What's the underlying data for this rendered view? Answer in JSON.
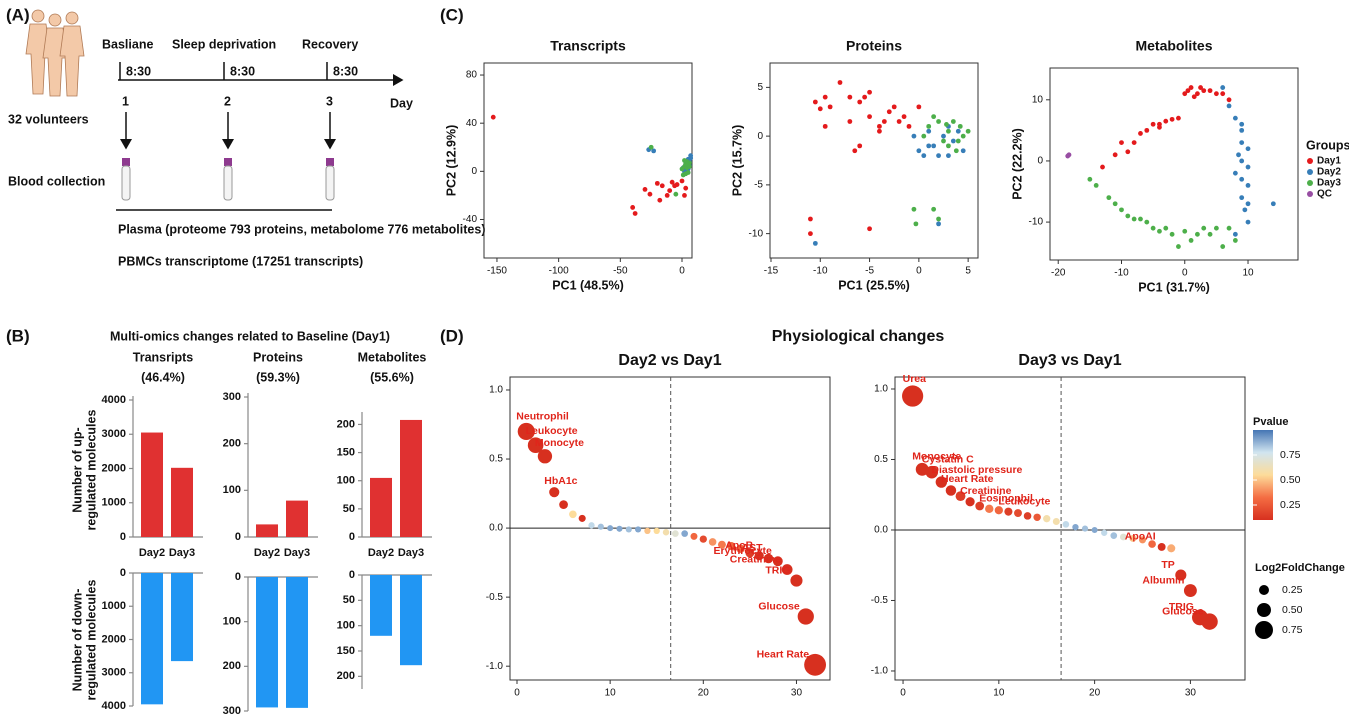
{
  "panel_a": {
    "label": "(A)",
    "stages": [
      "Basliane",
      "Sleep deprivation",
      "Recovery"
    ],
    "times": [
      "8:30",
      "8:30",
      "8:30"
    ],
    "days": [
      "1",
      "2",
      "3"
    ],
    "axis_label": "Day",
    "volunteers": "32 volunteers",
    "blood": "Blood collection",
    "plasma": "Plasma (proteome 793 proteins, metabolome 776 metabolites)",
    "pbmc": "PBMCs transcriptome (17251 transcripts)"
  },
  "panel_b": {
    "label": "(B)",
    "title": "Multi-omics changes related to Baseline (Day1)",
    "up_ylabel": [
      "Number of up-",
      "regulated molecules"
    ],
    "down_ylabel": [
      "Number of down-",
      "regulated molecules"
    ]
  },
  "panel_c": {
    "label": "(C)"
  },
  "panel_d": {
    "label": "(D)",
    "title": "Physiological changes",
    "color_legend": {
      "title": "Pvalue",
      "range": [
        0.1,
        1.0
      ],
      "colors": [
        "#d7301f",
        "#f46d43",
        "#fddc9a",
        "#d1e5f0",
        "#4575b4"
      ],
      "ticks": [
        0.75,
        {
          "value": 0.5,
          "label": "0.50"
        },
        0.25
      ]
    },
    "size_legend": {
      "title": "Log2FoldChange",
      "values": [
        0.25,
        {
          "value": 0.5,
          "label": "0.50"
        },
        0.75
      ]
    }
  },
  "chart_data": [
    {
      "type": "mirror-bar",
      "title": "Transripts",
      "subtitle": "(46.4%)",
      "categories": [
        "Day2",
        "Day3"
      ],
      "up_values": [
        3050,
        2020
      ],
      "up_ylim": [
        0,
        4000
      ],
      "up_yticks": [
        0,
        1000,
        2000,
        3000,
        4000
      ],
      "down_values": [
        3950,
        2650
      ],
      "down_ylim": [
        0,
        4000
      ],
      "down_yticks": [
        0,
        1000,
        2000,
        3000,
        4000
      ],
      "up_color": "#e03131",
      "down_color": "#2196f3"
    },
    {
      "type": "mirror-bar",
      "title": "Proteins",
      "subtitle": "(59.3%)",
      "categories": [
        "Day2",
        "Day3"
      ],
      "up_values": [
        27,
        78
      ],
      "up_ylim": [
        0,
        300
      ],
      "up_yticks": [
        0,
        100,
        200,
        300
      ],
      "down_values": [
        292,
        293
      ],
      "down_ylim": [
        0,
        300
      ],
      "down_yticks": [
        0,
        100,
        200,
        300
      ],
      "up_color": "#e03131",
      "down_color": "#2196f3"
    },
    {
      "type": "mirror-bar",
      "title": "Metabolites",
      "subtitle": "(55.6%)",
      "categories": [
        "Day2",
        "Day3"
      ],
      "up_values": [
        105,
        208
      ],
      "up_ylim": [
        0,
        215
      ],
      "up_yticks": [
        0,
        50,
        100,
        150,
        200
      ],
      "down_values": [
        120,
        178
      ],
      "down_ylim": [
        0,
        225
      ],
      "down_yticks": [
        0,
        50,
        100,
        150,
        200
      ],
      "up_color": "#e03131",
      "down_color": "#2196f3"
    },
    {
      "type": "scatter",
      "title": "Transcripts",
      "xlabel": "PC1 (48.5%)",
      "ylabel": "PC2 (12.9%)",
      "xlim": [
        -160.5,
        8.1
      ],
      "ylim": [
        -72,
        90
      ],
      "xticks": [
        -150,
        -100,
        -50,
        0
      ],
      "yticks": [
        -40,
        0,
        40,
        80
      ],
      "series": [
        {
          "color": "#e41a1c",
          "x": [
            -153,
            -40,
            -38,
            -30,
            -26,
            -20,
            -16,
            -12,
            -8,
            -4,
            0,
            3,
            -18,
            -10,
            2,
            -6
          ],
          "values": [
            45,
            -30,
            -35,
            -15,
            -19,
            -10,
            -12,
            -20,
            -9,
            -11,
            -8,
            -14,
            -24,
            -16,
            -20,
            -12
          ]
        },
        {
          "color": "#377eb8",
          "x": [
            -27,
            -23,
            1,
            3,
            5,
            6,
            7,
            4,
            2,
            6,
            7,
            5
          ],
          "values": [
            18,
            17,
            3,
            6,
            10,
            8,
            13,
            1,
            0,
            5,
            11,
            2
          ]
        },
        {
          "color": "#4daf4a",
          "x": [
            -25,
            0,
            2,
            3,
            4,
            5,
            6,
            1,
            4,
            5,
            -5,
            3,
            2,
            6
          ],
          "values": [
            20,
            2,
            4,
            6,
            3,
            -1,
            7,
            -3,
            8,
            5,
            -19,
            -2,
            9,
            4
          ]
        }
      ]
    },
    {
      "type": "scatter",
      "title": "Proteins",
      "xlabel": "PC1 (25.5%)",
      "ylabel": "PC2 (15.7%)",
      "xlim": [
        -15.1,
        6.0
      ],
      "ylim": [
        -12.5,
        7.5
      ],
      "xticks": [
        -15,
        -10,
        -5,
        0,
        5
      ],
      "yticks": [
        -10,
        -5,
        0,
        5
      ],
      "series": [
        {
          "color": "#e41a1c",
          "x": [
            -10.5,
            -10,
            -9.5,
            -9,
            -8,
            -7,
            -7,
            -6,
            -5.5,
            -5,
            -5,
            -4,
            -3.5,
            -3,
            -2.5,
            -2,
            -1.5,
            -1,
            0,
            -9.5,
            -6,
            -11,
            -11,
            -5,
            -6.5,
            -4
          ],
          "values": [
            3.5,
            2.8,
            4,
            3,
            5.5,
            4,
            1.5,
            3.5,
            4,
            4.5,
            2,
            0.5,
            1.5,
            2.5,
            3,
            1.5,
            2,
            1,
            3,
            1,
            -1,
            -8.5,
            -10,
            -9.5,
            -1.5,
            1
          ]
        },
        {
          "color": "#377eb8",
          "x": [
            -10.5,
            -0.5,
            0,
            0.5,
            1,
            1.5,
            2,
            2.5,
            3,
            3.5,
            4,
            4.5,
            2,
            1,
            3
          ],
          "values": [
            -11,
            0,
            -1.5,
            -2,
            0.5,
            -1,
            -2,
            0,
            1,
            -0.5,
            0.5,
            -1.5,
            -9,
            -1,
            -2
          ]
        },
        {
          "color": "#4daf4a",
          "x": [
            -0.5,
            -0.3,
            1.5,
            2,
            0.5,
            1,
            2,
            2.5,
            3,
            3.5,
            4,
            4.5,
            5,
            3,
            1.5,
            2.8,
            4.2,
            3.8
          ],
          "values": [
            -7.5,
            -9,
            -7.5,
            -8.5,
            0,
            1,
            1.5,
            -0.5,
            0.5,
            1.5,
            -0.5,
            0,
            0.5,
            -1,
            2,
            1.2,
            1,
            -1.5
          ]
        }
      ]
    },
    {
      "type": "scatter",
      "title": "Metabolites",
      "xlabel": "PC1 (31.7%)",
      "ylabel": "PC2 (22.2%)",
      "xlim": [
        -21.3,
        17.9
      ],
      "ylim": [
        -16.2,
        15.2
      ],
      "xticks": [
        -20,
        -10,
        0,
        10
      ],
      "yticks": [
        -10,
        0,
        10
      ],
      "legend": "right",
      "legend_title": "Groups",
      "series": [
        {
          "name": "Day1",
          "color": "#e41a1c",
          "x": [
            -13,
            -11,
            -9,
            -8,
            -7,
            -6,
            -5,
            -4,
            -3,
            -2,
            -1,
            0,
            1,
            1.5,
            2,
            3,
            4,
            5,
            6,
            7,
            -10,
            -4,
            0.5,
            2.5
          ],
          "values": [
            -1,
            1,
            1.5,
            3,
            4.5,
            5,
            6,
            6,
            6.5,
            6.8,
            7,
            11,
            12,
            10.5,
            11,
            11.5,
            11.5,
            11,
            11,
            10,
            3,
            5.5,
            11.5,
            12
          ]
        },
        {
          "name": "Day2",
          "color": "#377eb8",
          "x": [
            6,
            7,
            8,
            9,
            9,
            10,
            9,
            8,
            9,
            10,
            9,
            10,
            9.5,
            10,
            8,
            14,
            9,
            8.5,
            10
          ],
          "values": [
            12,
            9,
            7,
            5,
            3,
            2,
            0,
            -2,
            -3,
            -4,
            -6,
            -7,
            -8,
            -10,
            -12,
            -7,
            6,
            1,
            -1
          ]
        },
        {
          "name": "Day3",
          "color": "#4daf4a",
          "x": [
            -15,
            -14,
            -12,
            -11,
            -10,
            -9,
            -8,
            -6,
            -5,
            -4,
            -2,
            0,
            1,
            2,
            3,
            4,
            5,
            6,
            7,
            8,
            -7,
            -3,
            -1
          ],
          "values": [
            -3,
            -4,
            -6,
            -7,
            -8,
            -9,
            -9.5,
            -10,
            -11,
            -11.5,
            -12,
            -11.5,
            -13,
            -12,
            -11,
            -12,
            -11,
            -14,
            -11,
            -13,
            -9.5,
            -11,
            -14
          ]
        },
        {
          "name": "QC",
          "color": "#984ea3",
          "x": [
            -18.5,
            -18.3
          ],
          "values": [
            0.8,
            1
          ]
        }
      ]
    },
    {
      "type": "bubble",
      "title": "Day2 vs Day1",
      "xlim": [
        -0.75,
        33.6
      ],
      "ylim": [
        -1.1,
        1.094
      ],
      "xticks": [
        0,
        10,
        20,
        30
      ],
      "yticks": [
        {
          "value": -1,
          "label": "-1.0"
        },
        -0.5,
        {
          "value": 0,
          "label": "0.0"
        },
        0.5,
        {
          "value": 1,
          "label": "1.0"
        }
      ],
      "vline": 16.5,
      "x": [
        1,
        2,
        3,
        4,
        5,
        6,
        7,
        8,
        9,
        10,
        11,
        12,
        13,
        14,
        15,
        16,
        17,
        18,
        19,
        20,
        21,
        22,
        23,
        24,
        25,
        26,
        27,
        28,
        29,
        30,
        31,
        32
      ],
      "values": [
        0.7,
        0.6,
        0.52,
        0.26,
        0.17,
        0.1,
        0.07,
        0.02,
        0.01,
        0.0,
        -0.005,
        -0.01,
        -0.01,
        -0.02,
        -0.02,
        -0.03,
        -0.04,
        -0.04,
        -0.06,
        -0.08,
        -0.1,
        -0.12,
        -0.13,
        -0.15,
        -0.18,
        -0.2,
        -0.22,
        -0.24,
        -0.3,
        -0.38,
        -0.64,
        -0.99
      ],
      "pvalues": [
        0.05,
        0.05,
        0.05,
        0.1,
        0.1,
        0.55,
        0.1,
        0.8,
        0.85,
        0.9,
        0.9,
        0.85,
        0.9,
        0.5,
        0.55,
        0.6,
        0.7,
        0.9,
        0.3,
        0.2,
        0.4,
        0.35,
        0.3,
        0.3,
        0.15,
        0.1,
        0.1,
        0.1,
        0.1,
        0.1,
        0.05,
        0.05
      ],
      "point_labels": [
        "Neutrophil",
        "Leukocyte",
        "Monocyte",
        "HbA1c",
        null,
        null,
        null,
        null,
        null,
        null,
        null,
        null,
        null,
        null,
        null,
        null,
        null,
        null,
        null,
        null,
        null,
        null,
        null,
        null,
        null,
        "ApoB",
        "AST",
        "Erythrocyte",
        "Creatinine",
        "TRIG",
        "Glucose",
        "Heart Rate"
      ]
    },
    {
      "type": "bubble",
      "title": "Day3 vs Day1",
      "xlim": [
        -0.84,
        35.7
      ],
      "ylim": [
        -1.064,
        1.085
      ],
      "xticks": [
        0,
        10,
        20,
        30
      ],
      "yticks": [
        {
          "value": -1,
          "label": "-1.0"
        },
        -0.5,
        {
          "value": 0,
          "label": "0.0"
        },
        0.5,
        {
          "value": 1,
          "label": "1.0"
        }
      ],
      "vline": 16.5,
      "x": [
        1,
        2,
        3,
        4,
        5,
        6,
        7,
        8,
        9,
        10,
        11,
        12,
        13,
        14,
        15,
        16,
        17,
        18,
        19,
        20,
        21,
        22,
        23,
        24,
        25,
        26,
        27,
        28,
        29,
        30,
        31,
        32
      ],
      "values": [
        0.95,
        0.43,
        0.41,
        0.34,
        0.28,
        0.24,
        0.2,
        0.17,
        0.15,
        0.14,
        0.13,
        0.12,
        0.1,
        0.09,
        0.08,
        0.06,
        0.04,
        0.02,
        0.01,
        0.0,
        -0.02,
        -0.04,
        -0.05,
        -0.06,
        -0.07,
        -0.1,
        -0.12,
        -0.13,
        -0.32,
        -0.43,
        -0.62,
        -0.65
      ],
      "pvalues": [
        0.05,
        0.1,
        0.1,
        0.1,
        0.1,
        0.15,
        0.1,
        0.15,
        0.35,
        0.3,
        0.15,
        0.2,
        0.15,
        0.25,
        0.6,
        0.6,
        0.8,
        0.9,
        0.85,
        0.9,
        0.8,
        0.85,
        0.7,
        0.5,
        0.4,
        0.3,
        0.1,
        0.45,
        0.1,
        0.1,
        0.05,
        0.05
      ],
      "point_labels": [
        "Urea",
        "Monocyte",
        "Cystatin C",
        "Diastolic pressure",
        "Heart Rate",
        null,
        "Creatinine",
        null,
        "Eosinophil",
        null,
        "Leukocyte",
        null,
        null,
        null,
        null,
        null,
        null,
        null,
        null,
        null,
        null,
        null,
        null,
        null,
        null,
        null,
        "ApoAI",
        null,
        "TP",
        "Albumin",
        "TRIG",
        "Glucose"
      ]
    }
  ]
}
